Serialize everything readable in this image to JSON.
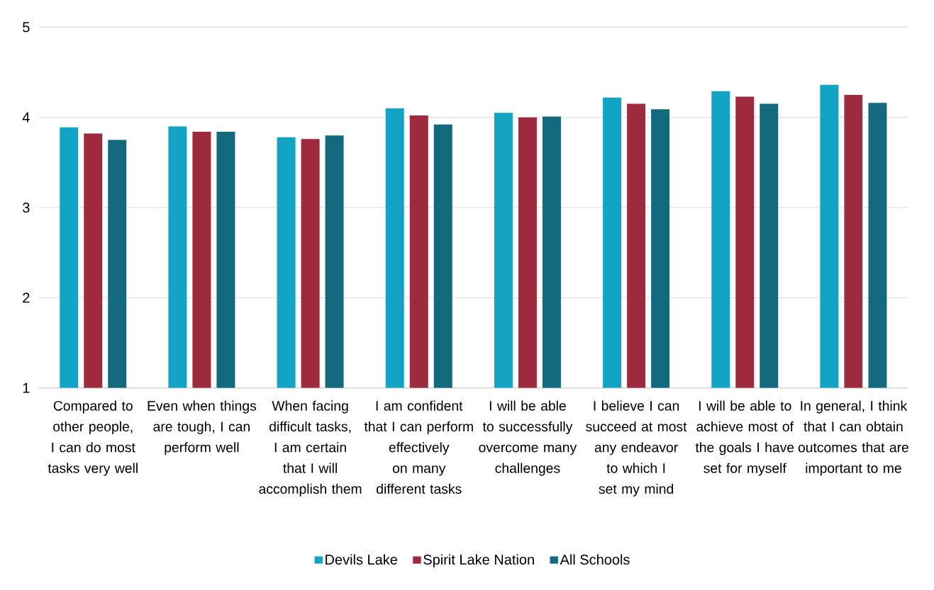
{
  "chart_data": {
    "type": "bar",
    "categories": [
      "Compared to other people, I can do most tasks very well",
      "Even when things are tough, I can perform well",
      "When facing difficult tasks, I am certain that I will accomplish them",
      "I am confident that I can perform effectively on many different tasks",
      "I will be able to successfully overcome many challenges",
      "I believe I can succeed at most any endeavor to which I set my mind",
      "I will be able to achieve most of the goals I have set for myself",
      "In general, I think that I can obtain outcomes that are important to me"
    ],
    "series": [
      {
        "name": "Devils Lake",
        "color": "#13a3c4",
        "values": [
          3.89,
          3.9,
          3.78,
          4.1,
          4.05,
          4.22,
          4.29,
          4.36
        ]
      },
      {
        "name": "Spirit Lake Nation",
        "color": "#9e2a3e",
        "values": [
          3.82,
          3.84,
          3.76,
          4.02,
          4.0,
          4.15,
          4.23,
          4.25
        ]
      },
      {
        "name": "All Schools",
        "color": "#136a7e",
        "values": [
          3.75,
          3.84,
          3.8,
          3.92,
          4.01,
          4.09,
          4.15,
          4.16
        ]
      }
    ],
    "ylim": [
      1,
      5
    ],
    "yticks": [
      1,
      2,
      3,
      4,
      5
    ],
    "grid": "y",
    "legend": "bottom"
  }
}
